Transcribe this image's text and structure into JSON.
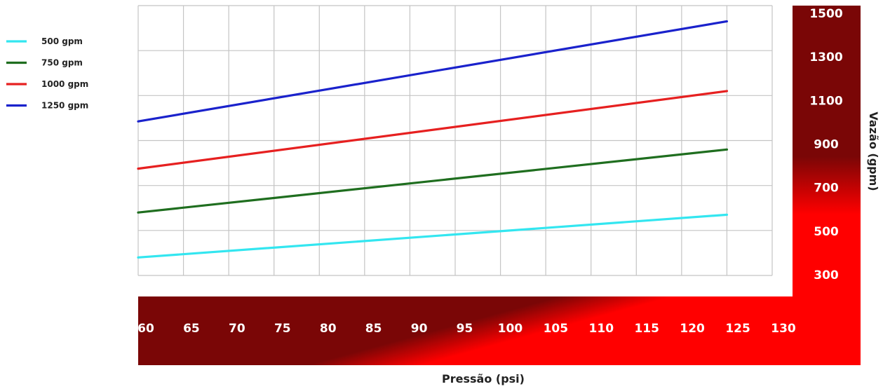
{
  "chart_data": {
    "type": "line",
    "xlabel": "Pressão (psi)",
    "ylabel": "Vazão (gpm)",
    "x_ticks": [
      60,
      65,
      70,
      75,
      80,
      85,
      90,
      95,
      100,
      105,
      110,
      115,
      120,
      125,
      130
    ],
    "y_ticks": [
      300,
      500,
      700,
      900,
      1100,
      1300,
      1500
    ],
    "xlim": [
      60,
      130
    ],
    "ylim": [
      300,
      1500
    ],
    "grid": true,
    "legend_position": "left",
    "x": [
      60,
      125
    ],
    "series": [
      {
        "name": "500 gpm",
        "color": "#33e6f0",
        "values": [
          380,
          570
        ]
      },
      {
        "name": "750 gpm",
        "color": "#1f6e1f",
        "values": [
          580,
          860
        ]
      },
      {
        "name": "1000 gpm",
        "color": "#e62020",
        "values": [
          775,
          1120
        ]
      },
      {
        "name": "1250 gpm",
        "color": "#1a22cc",
        "values": [
          985,
          1430
        ]
      }
    ]
  }
}
